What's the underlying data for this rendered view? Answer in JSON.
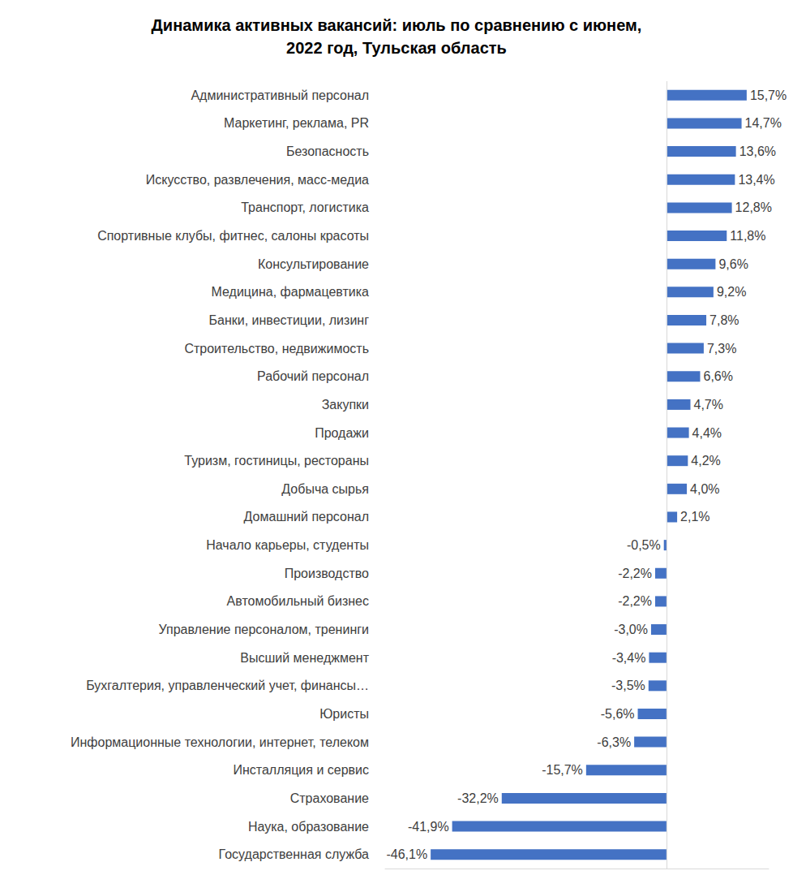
{
  "chart_data": {
    "type": "bar",
    "title": "Динамика активных вакансий: июль по сравнению с июнем,\n2022 год, Тульская область",
    "orientation": "horizontal",
    "categories": [
      "Административный персонал",
      "Маркетинг, реклама, PR",
      "Безопасность",
      "Искусство, развлечения, масс-медиа",
      "Транспорт, логистика",
      "Спортивные клубы, фитнес, салоны красоты",
      "Консультирование",
      "Медицина, фармацевтика",
      "Банки, инвестиции, лизинг",
      "Строительство, недвижимость",
      "Рабочий персонал",
      "Закупки",
      "Продажи",
      "Туризм, гостиницы, рестораны",
      "Добыча сырья",
      "Домашний персонал",
      "Начало карьеры, студенты",
      "Производство",
      "Автомобильный бизнес",
      "Управление персоналом, тренинги",
      "Высший менеджмент",
      "Бухгалтерия, управленческий учет, финансы…",
      "Юристы",
      "Информационные технологии, интернет, телеком",
      "Инсталляция и сервис",
      "Страхование",
      "Наука, образование",
      "Государственная служба"
    ],
    "values": [
      15.7,
      14.7,
      13.6,
      13.4,
      12.8,
      11.8,
      9.6,
      9.2,
      7.8,
      7.3,
      6.6,
      4.7,
      4.4,
      4.2,
      4.0,
      2.1,
      -0.5,
      -2.2,
      -2.2,
      -3.0,
      -3.4,
      -3.5,
      -5.6,
      -6.3,
      -15.7,
      -32.2,
      -41.9,
      -46.1
    ],
    "value_labels": [
      "15,7%",
      "14,7%",
      "13,6%",
      "13,4%",
      "12,8%",
      "11,8%",
      "9,6%",
      "9,2%",
      "7,8%",
      "7,3%",
      "6,6%",
      "4,7%",
      "4,4%",
      "4,2%",
      "4,0%",
      "2,1%",
      "-0,5%",
      "-2,2%",
      "-2,2%",
      "-3,0%",
      "-3,4%",
      "-3,5%",
      "-5,6%",
      "-6,3%",
      "-15,7%",
      "-32,2%",
      "-41,9%",
      "-46,1%"
    ],
    "color": "#4472c4",
    "xlim": [
      -55,
      20
    ],
    "data_labels": true,
    "tick_labels": "y",
    "grid": false
  }
}
